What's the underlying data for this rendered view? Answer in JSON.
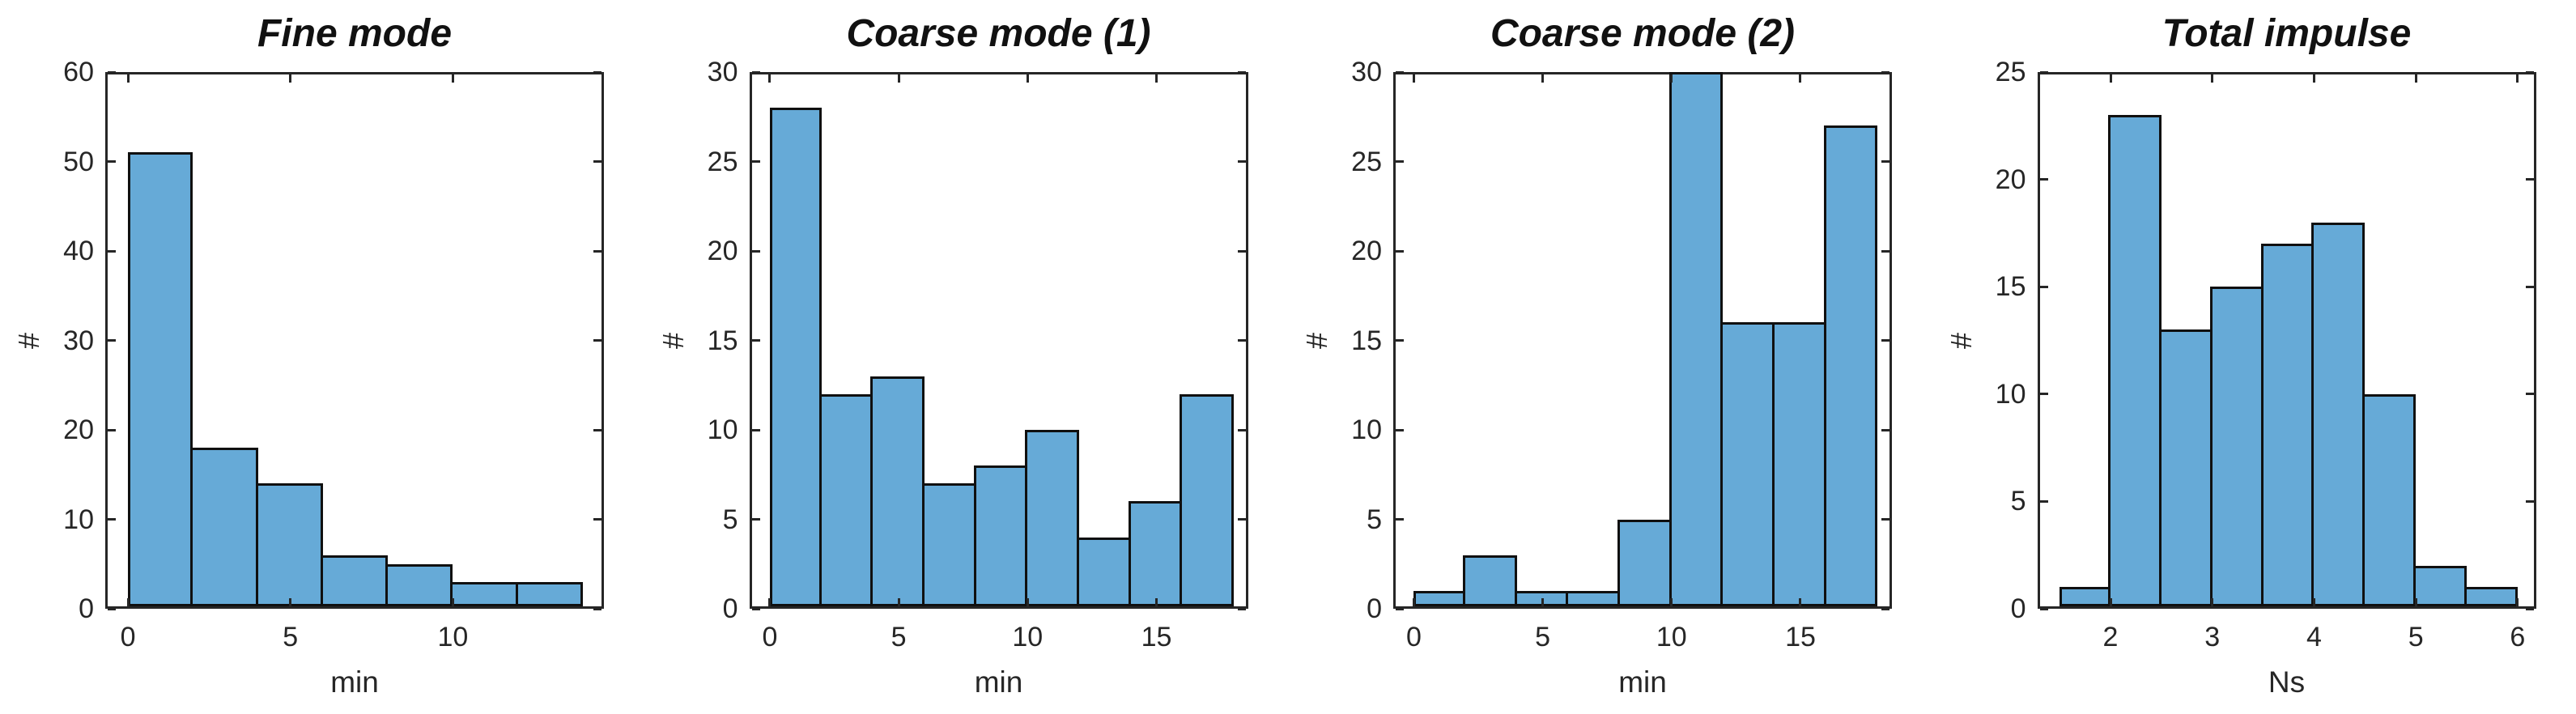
{
  "figure": {
    "background": "#ffffff",
    "bar_fill_color": "#66AAD7",
    "bar_edge_color": "#101010",
    "axis_color": "#262626",
    "text_color": "#262626",
    "title_color": "#111111"
  },
  "chart_data": [
    {
      "type": "bar",
      "title": "Fine mode",
      "xlabel": "min",
      "ylabel": "#",
      "bin_edges": [
        0,
        2,
        4,
        6,
        8,
        10,
        12,
        14
      ],
      "values": [
        51,
        18,
        14,
        6,
        5,
        3,
        3
      ],
      "xlim": [
        -0.7,
        14.65
      ],
      "ylim": [
        0,
        60
      ],
      "xticks": [
        0,
        5,
        10
      ],
      "yticks": [
        0,
        10,
        20,
        30,
        40,
        50,
        60
      ],
      "grid": false,
      "legend": null
    },
    {
      "type": "bar",
      "title": "Coarse mode (1)",
      "xlabel": "min",
      "ylabel": "#",
      "bin_edges": [
        0,
        2,
        4,
        6,
        8,
        10,
        12,
        14,
        16,
        18
      ],
      "values": [
        28,
        12,
        13,
        7,
        8,
        10,
        4,
        6,
        12
      ],
      "xlim": [
        -0.8,
        18.55
      ],
      "ylim": [
        0,
        30
      ],
      "xticks": [
        0,
        5,
        10,
        15
      ],
      "yticks": [
        0,
        5,
        10,
        15,
        20,
        25,
        30
      ],
      "grid": false,
      "legend": null
    },
    {
      "type": "bar",
      "title": "Coarse mode (2)",
      "xlabel": "min",
      "ylabel": "#",
      "bin_edges": [
        0,
        2,
        4,
        6,
        8,
        10,
        12,
        14,
        16,
        18
      ],
      "values": [
        1,
        3,
        1,
        1,
        5,
        30,
        16,
        16,
        27
      ],
      "xlim": [
        -0.8,
        18.55
      ],
      "ylim": [
        0,
        30
      ],
      "xticks": [
        0,
        5,
        10,
        15
      ],
      "yticks": [
        0,
        5,
        10,
        15,
        20,
        25,
        30
      ],
      "grid": false,
      "legend": null
    },
    {
      "type": "bar",
      "title": "Total impulse",
      "xlabel": "Ns",
      "ylabel": "#",
      "bin_edges": [
        1.5,
        2,
        2.5,
        3,
        3.5,
        4,
        4.5,
        5,
        5.5,
        6
      ],
      "values": [
        1,
        23,
        13,
        15,
        17,
        18,
        10,
        2,
        1
      ],
      "xlim": [
        1.28,
        6.18
      ],
      "ylim": [
        0,
        25
      ],
      "xticks": [
        2,
        3,
        4,
        5,
        6
      ],
      "yticks": [
        0,
        5,
        10,
        15,
        20,
        25
      ],
      "grid": false,
      "legend": null
    }
  ]
}
